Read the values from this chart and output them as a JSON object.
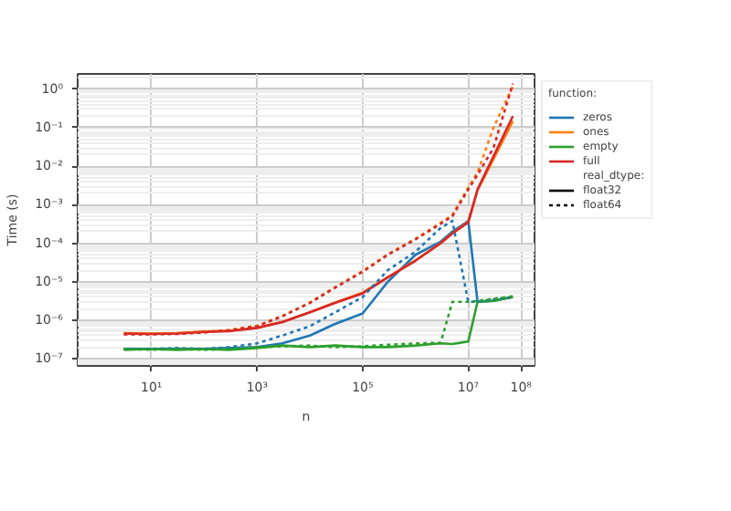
{
  "chart_data": {
    "type": "line",
    "xlabel": "n",
    "ylabel": "Time (s)",
    "legend_title": "function:",
    "log": "xy",
    "grid": true,
    "legend": "right",
    "marker": "none",
    "xlim": [
      0.4,
      180000000
    ],
    "ylim": [
      6.5e-08,
      2.5
    ],
    "xticks": [
      {
        "value": 10,
        "label": "10¹"
      },
      {
        "value": 1000,
        "label": "10³"
      },
      {
        "value": 100000,
        "label": "10⁵"
      },
      {
        "value": 10000000,
        "label": "10⁷"
      },
      {
        "value": 100000000,
        "label": "10⁸"
      }
    ],
    "yticks": [
      {
        "value": 1e-07,
        "label": "10⁻⁷"
      },
      {
        "value": 1e-06,
        "label": "10⁻⁶"
      },
      {
        "value": 1e-05,
        "label": "10⁻⁵"
      },
      {
        "value": 0.0001,
        "label": "10⁻⁴"
      },
      {
        "value": 0.001,
        "label": "10⁻³"
      },
      {
        "value": 0.01,
        "label": "10⁻²"
      },
      {
        "value": 0.1,
        "label": "10⁻¹"
      },
      {
        "value": 1,
        "label": "10⁰"
      }
    ],
    "x": [
      3,
      10,
      30,
      100,
      300,
      1000,
      3000,
      10000,
      30000,
      100000,
      300000,
      1000000,
      3000000,
      5000000,
      10000000,
      15000000,
      30000000,
      70000000
    ],
    "annotations": [
      "real_dtype:",
      "float32",
      "float64"
    ],
    "series": [
      {
        "name": "zeros",
        "color": "#1f77b4",
        "line_style": "solid",
        "values": [
          1.8e-07,
          1.8e-07,
          1.8e-07,
          1.8e-07,
          1.9e-07,
          2e-07,
          2.5e-07,
          4e-07,
          8e-07,
          1.5e-06,
          1e-05,
          5e-05,
          0.00011,
          0.0002,
          0.00038,
          3e-06,
          3.2e-06,
          4e-06
        ]
      },
      {
        "name": "ones",
        "color": "#ff7f0e",
        "line_style": "solid",
        "values": [
          4.6e-07,
          4.5e-07,
          4.6e-07,
          5.1e-07,
          5.3e-07,
          6.4e-07,
          9e-07,
          1.6e-06,
          2.9e-06,
          5.2e-06,
          1.3e-05,
          3.6e-05,
          0.0001,
          0.00018,
          0.00036,
          0.0024,
          0.015,
          0.15
        ]
      },
      {
        "name": "empty",
        "color": "#2ca02c",
        "line_style": "solid",
        "values": [
          1.7e-07,
          1.8e-07,
          1.7e-07,
          1.8e-07,
          1.7e-07,
          1.9e-07,
          2.2e-07,
          2e-07,
          2.2e-07,
          2e-07,
          2e-07,
          2.2e-07,
          2.5e-07,
          2.4e-07,
          2.8e-07,
          3e-06,
          3.2e-06,
          4e-06
        ]
      },
      {
        "name": "full",
        "color": "#d62728",
        "line_style": "solid",
        "values": [
          4.5e-07,
          4.4e-07,
          4.5e-07,
          5e-07,
          5.2e-07,
          6.3e-07,
          8.9e-07,
          1.6e-06,
          2.8e-06,
          5e-06,
          1.3e-05,
          3.5e-05,
          0.0001,
          0.00018,
          0.00035,
          0.0025,
          0.018,
          0.2
        ]
      },
      {
        "color": "#1f77b4",
        "line_style": "dotted",
        "values": [
          1.8e-07,
          1.8e-07,
          1.9e-07,
          1.8e-07,
          2e-07,
          2.5e-07,
          4e-07,
          7e-07,
          1.6e-06,
          4e-06,
          2e-05,
          6e-05,
          0.00025,
          0.00038,
          3e-06,
          3e-06,
          3.5e-06,
          4e-06
        ]
      },
      {
        "color": "#ff7f0e",
        "line_style": "dotted",
        "values": [
          4.4e-07,
          4.4e-07,
          4.5e-07,
          4.9e-07,
          5.6e-07,
          7.2e-07,
          1.3e-06,
          2.9e-06,
          7.2e-06,
          1.9e-05,
          5.2e-05,
          0.00013,
          0.00034,
          0.00055,
          0.0028,
          0.007,
          0.1,
          1.2
        ]
      },
      {
        "color": "#2ca02c",
        "line_style": "dotted",
        "values": [
          1.8e-07,
          1.7e-07,
          1.8e-07,
          1.7e-07,
          1.8e-07,
          2e-07,
          2.1e-07,
          2.2e-07,
          2e-07,
          2.1e-07,
          2.3e-07,
          2.5e-07,
          2.6e-07,
          3e-06,
          3e-06,
          3.2e-06,
          3.6e-06,
          4.2e-06
        ]
      },
      {
        "color": "#d62728",
        "line_style": "dotted",
        "values": [
          4.3e-07,
          4.3e-07,
          4.4e-07,
          4.8e-07,
          5.5e-07,
          7e-07,
          1.26e-06,
          2.8e-06,
          7e-06,
          1.8e-05,
          5e-05,
          0.000126,
          0.00032,
          0.0005,
          0.0025,
          0.006,
          0.03,
          1.4
        ]
      }
    ]
  }
}
